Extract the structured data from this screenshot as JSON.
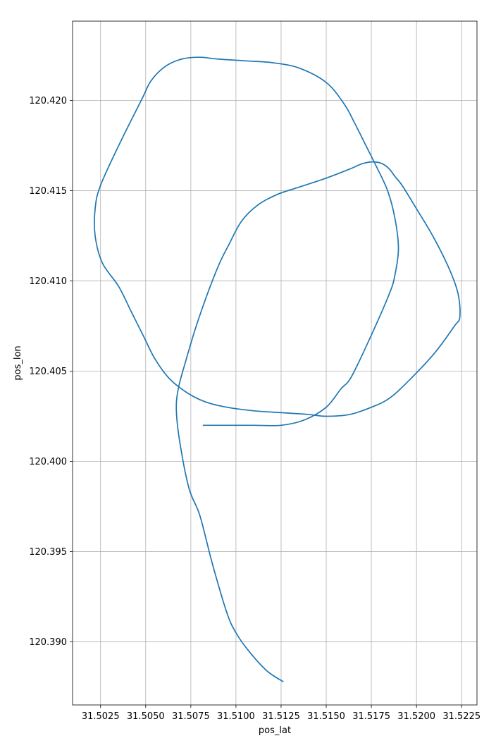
{
  "chart_data": {
    "type": "line",
    "title": "",
    "xlabel": "pos_lat",
    "ylabel": "pos_lon",
    "xlim": [
      31.50095,
      31.52335
    ],
    "ylim": [
      120.3865,
      120.4244
    ],
    "grid": true,
    "legend": "none",
    "x_ticks": [
      31.5025,
      31.505,
      31.5075,
      31.51,
      31.5125,
      31.515,
      31.5175,
      31.52,
      31.5225
    ],
    "x_tick_labels": [
      "31.5025",
      "31.5050",
      "31.5075",
      "31.5100",
      "31.5125",
      "31.5150",
      "31.5175",
      "31.5200",
      "31.5225"
    ],
    "y_ticks": [
      120.39,
      120.395,
      120.4,
      120.405,
      120.41,
      120.415,
      120.42
    ],
    "y_tick_labels": [
      "120.390",
      "120.395",
      "120.400",
      "120.405",
      "120.410",
      "120.415",
      "120.420"
    ],
    "series": [
      {
        "color": "#1f77b4",
        "x": [
          31.5126,
          31.5117,
          31.5107,
          31.51,
          31.5095,
          31.5087,
          31.508,
          31.5074,
          31.5069,
          31.5067,
          31.5068,
          31.5072,
          31.5078,
          31.5085,
          31.5091,
          31.5096,
          31.5103,
          31.5112,
          31.5123,
          31.5135,
          31.515,
          31.5163,
          31.517,
          31.5176,
          31.5181,
          31.5185,
          31.5188,
          31.5192,
          31.52,
          31.5209,
          31.5218,
          31.5223,
          31.5224,
          31.5221,
          31.521,
          31.5196,
          31.5185,
          31.5175,
          31.5163,
          31.515,
          31.514,
          31.5125,
          31.511,
          31.5095,
          31.5083,
          31.5073,
          31.5063,
          31.5055,
          31.5049,
          31.5042,
          31.5035,
          31.5026,
          31.5022,
          31.5022,
          31.5025,
          31.5036,
          31.5048,
          31.5053,
          31.5061,
          31.507,
          31.508,
          31.509,
          31.5105,
          31.512,
          31.5135,
          31.515,
          31.516,
          31.5166,
          31.5172,
          31.5178,
          31.5184,
          31.5188,
          31.519,
          31.5188,
          31.5185,
          31.5175,
          31.5164,
          31.5158,
          31.515,
          31.5138,
          31.5125,
          31.511,
          31.5095,
          31.5082
        ],
        "y": [
          120.3878,
          120.3884,
          120.3895,
          120.3905,
          120.3916,
          120.3943,
          120.397,
          120.3985,
          120.401,
          120.4028,
          120.404,
          120.4055,
          120.4075,
          120.4095,
          120.411,
          120.412,
          120.4133,
          120.4142,
          120.4148,
          120.4152,
          120.4157,
          120.4162,
          120.4165,
          120.4166,
          120.4165,
          120.4162,
          120.4158,
          120.4153,
          120.414,
          120.4125,
          120.4107,
          120.4093,
          120.408,
          120.4075,
          120.406,
          120.4045,
          120.4035,
          120.403,
          120.4026,
          120.4025,
          120.4026,
          120.4027,
          120.4028,
          120.403,
          120.4033,
          120.4038,
          120.4046,
          120.4057,
          120.4069,
          120.4083,
          120.4097,
          120.411,
          120.4125,
          120.414,
          120.4153,
          120.4177,
          120.4201,
          120.4211,
          120.4219,
          120.4223,
          120.4224,
          120.4223,
          120.4222,
          120.4221,
          120.4218,
          120.421,
          120.4198,
          120.4187,
          120.4175,
          120.4163,
          120.415,
          120.4135,
          120.4118,
          120.4103,
          120.4093,
          120.407,
          120.4047,
          120.404,
          120.403,
          120.4023,
          120.402,
          120.402,
          120.402,
          120.402
        ]
      }
    ]
  }
}
